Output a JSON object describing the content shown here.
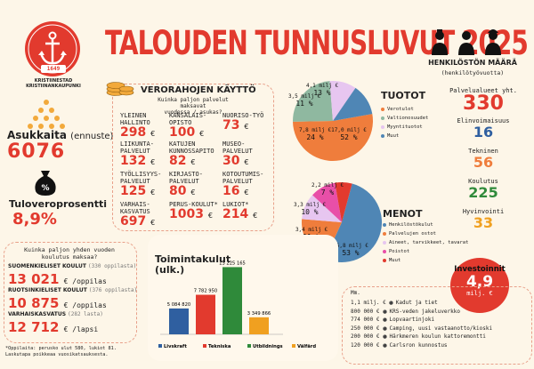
{
  "header": {
    "title": "TALOUDEN TUNNUSLUVUT 2025",
    "logo": {
      "year": "1649",
      "name_line1": "KRISTIINESTAD",
      "name_line2": "KRISTIINANKAUPUNKI"
    }
  },
  "left": {
    "residents_label": "Asukkaita",
    "residents_note": "(ennuste)",
    "residents_value": "6076",
    "tax_label": "Tuloveroprosentti",
    "tax_value": "8,9%"
  },
  "tax_usage": {
    "title": "VERORAHOJEN KÄYTTÖ",
    "subtitle_line1": "Kuinka paljon palvelut maksavat",
    "subtitle_line2": "vuodessa / asukas?",
    "currency": "€",
    "items": [
      {
        "name": "YLEINEN HALLINTO",
        "value": "298"
      },
      {
        "name": "KANSALAIS-OPISTO",
        "value": "100"
      },
      {
        "name": "NUORISO-TYÖ",
        "value": "73"
      },
      {
        "name": "LIIKUNTA-PALVELUT",
        "value": "132"
      },
      {
        "name": "KATUJEN KUNNOSSAPITO",
        "value": "82"
      },
      {
        "name": "MUSEO-PALVELUT",
        "value": "30"
      },
      {
        "name": "TYÖLLISYYS-PALVELUT",
        "value": "125"
      },
      {
        "name": "KIRJASTO-PALVELUT",
        "value": "80"
      },
      {
        "name": "KOTOUTUMIS-PALVELUT",
        "value": "16"
      },
      {
        "name": "VARHAIS-KASVATUS",
        "value": "697"
      },
      {
        "name": "PERUS-KOULUT*",
        "value": "1003"
      },
      {
        "name": "LUKIOT*",
        "value": "214"
      }
    ]
  },
  "income": {
    "title": "TUOTOT",
    "legend": [
      "Verotulot",
      "Valtionosuudet",
      "Myyntituotot",
      "Muut"
    ],
    "labels": [
      {
        "value": "17,0 milj €",
        "pct": "52 %"
      },
      {
        "value": "7,8 milj €",
        "pct": "24 %"
      },
      {
        "value": "3,5 milj €",
        "pct": "11 %"
      },
      {
        "value": "4,1 milj €",
        "pct": "13 %"
      }
    ]
  },
  "expenses": {
    "title": "MENOT",
    "legend": [
      "Henkilöstökulut",
      "Palvelujen ostot",
      "Aineet, tarvikkeet, tavarat",
      "Poistot",
      "Muut"
    ],
    "labels": [
      {
        "value": "16,8 milj €",
        "pct": "53 %"
      },
      {
        "value": "6,2 milj €",
        "pct": "19 %"
      },
      {
        "value": "3,4 milj €",
        "pct": "11 %"
      },
      {
        "value": "3,3 milj €",
        "pct": "10 %"
      },
      {
        "value": "2,2 milj €",
        "pct": "7 %"
      }
    ]
  },
  "chart_data": [
    {
      "type": "pie",
      "title": "TUOTOT",
      "categories": [
        "Verotulot",
        "Valtionosuudet",
        "Myyntituotot",
        "Muut"
      ],
      "values": [
        17.0,
        7.8,
        3.5,
        4.1
      ],
      "percentages": [
        52,
        24,
        11,
        13
      ],
      "colors": [
        "#ef7d3c",
        "#8fb8a0",
        "#e7c6f0",
        "#4f86b5"
      ]
    },
    {
      "type": "pie",
      "title": "MENOT",
      "categories": [
        "Henkilöstökulut",
        "Palvelujen ostot",
        "Aineet, tarvikkeet, tavarat",
        "Poistot",
        "Muut"
      ],
      "values": [
        16.8,
        6.2,
        3.4,
        3.3,
        2.2
      ],
      "percentages": [
        53,
        19,
        11,
        10,
        7
      ],
      "colors": [
        "#4f86b5",
        "#ef7d3c",
        "#e7c6f0",
        "#e84fa8",
        "#e23a2e"
      ]
    },
    {
      "type": "bar",
      "title": "Toimintakulut (ulk.)",
      "categories": [
        "Livskraft",
        "Tekniska",
        "Utbildnings",
        "Välfärd"
      ],
      "values": [
        5084820,
        7782950,
        13225165,
        3349866
      ],
      "value_labels": [
        "5 084 820",
        "7 782 950",
        "13 225 165",
        "3 349 866"
      ],
      "colors": [
        "#2f5fa0",
        "#e23a2e",
        "#2f8a3a",
        "#f0a020"
      ],
      "ylim": [
        0,
        14000000
      ]
    }
  ],
  "opex": {
    "title_line1": "Toimintakulut",
    "title_line2": "(ulk.)"
  },
  "education": {
    "title_line1": "Kuinka paljon yhden vuoden",
    "title_line2": "koulutus maksaa?",
    "rows": [
      {
        "name": "SUOMENKIELISET KOULUT",
        "note": "(330 oppilasta)",
        "value": "13 021",
        "unit": "€ /oppilas"
      },
      {
        "name": "RUOTSINKIELISET KOULUT",
        "note": "(376 oppilasta)",
        "value": "10 875",
        "unit": "€ /oppilas"
      },
      {
        "name": "VARHAISKASVATUS",
        "note": "(282 lasta)",
        "value": "12 712",
        "unit": "€ /lapsi"
      }
    ],
    "footnote_line1": "*Oppilaita: perusko ulut 580, lukiot 81.",
    "footnote_line2": "Laskutapa poikkeaa vuosikatsauksesta."
  },
  "staff": {
    "title": "Henkilöstön määrä",
    "subtitle": "(henkilötyövuotta)",
    "items": [
      {
        "name": "Palvelualueet yht.",
        "value": "330",
        "color": "#e23a2e"
      },
      {
        "name": "Elinvoimaisuus",
        "value": "16",
        "color": "#2f5fa0"
      },
      {
        "name": "Tekninen",
        "value": "56",
        "color": "#ef7d3c"
      },
      {
        "name": "Koulutus",
        "value": "225",
        "color": "#2f8a3a"
      },
      {
        "name": "Hyvinvointi",
        "value": "33",
        "color": "#f0a020"
      }
    ]
  },
  "investments": {
    "title": "Investoinnit",
    "value": "4,9",
    "unit": "milj. €",
    "header": "Mm.",
    "rows": [
      {
        "amount": "1,1 milj. €",
        "name": "Kadut ja tiet"
      },
      {
        "amount": "800 000 €",
        "name": "KRS-veden jakeluverkko"
      },
      {
        "amount": "774 000 €",
        "name": "Lopvaartinjoki"
      },
      {
        "amount": "250 000 €",
        "name": "Camping, uusi vastaanotto/kioski"
      },
      {
        "amount": "200 000 €",
        "name": "Härkmeren koulun kattoremontti"
      },
      {
        "amount": "120 000 €",
        "name": "Carlsron kunnostus"
      }
    ]
  }
}
